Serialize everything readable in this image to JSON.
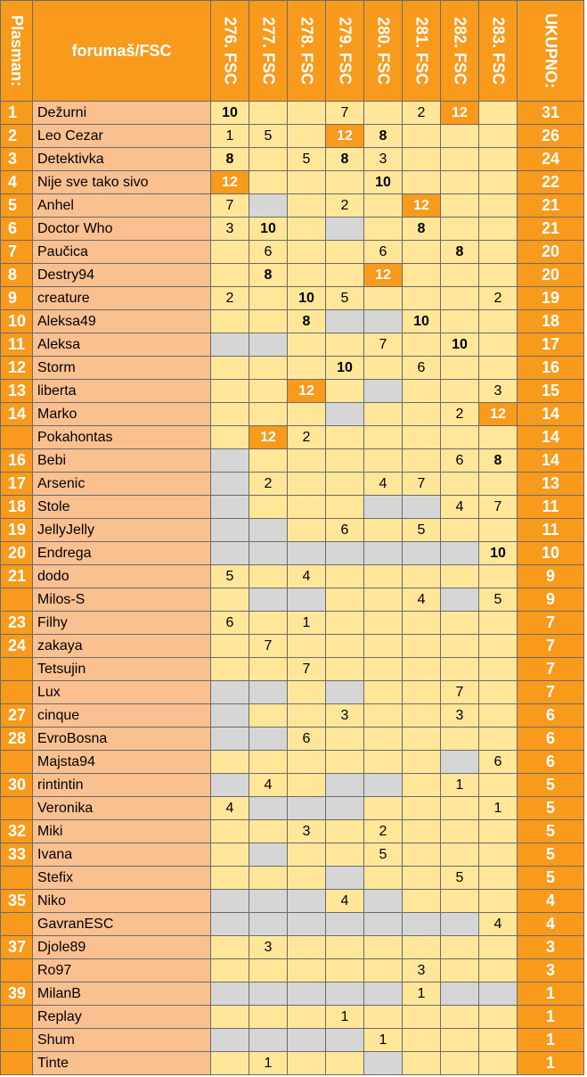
{
  "header": {
    "rank": "Plasman:",
    "name": "forumaš/FSC",
    "columns": [
      "276. FSC",
      "277. FSC",
      "278. FSC",
      "279. FSC",
      "280. FSC",
      "281. FSC",
      "282. FSC",
      "283. FSC"
    ],
    "total": "UKUPNO:"
  },
  "rows": [
    {
      "rank": 1,
      "name": "Dežurni",
      "scores": [
        10,
        null,
        null,
        7,
        null,
        2,
        12,
        null
      ],
      "grey": [],
      "total": 31
    },
    {
      "rank": 2,
      "name": "Leo Cezar",
      "scores": [
        1,
        5,
        null,
        12,
        8,
        null,
        null,
        null
      ],
      "grey": [],
      "total": 26
    },
    {
      "rank": 3,
      "name": "Detektivka",
      "scores": [
        8,
        null,
        5,
        8,
        3,
        null,
        null,
        null
      ],
      "grey": [],
      "total": 24
    },
    {
      "rank": 4,
      "name": "Nije sve tako sivo",
      "scores": [
        12,
        null,
        null,
        null,
        10,
        null,
        null,
        null
      ],
      "grey": [],
      "total": 22
    },
    {
      "rank": 5,
      "name": "Anhel",
      "scores": [
        7,
        null,
        null,
        2,
        null,
        12,
        null,
        null
      ],
      "grey": [
        1
      ],
      "total": 21
    },
    {
      "rank": 6,
      "name": "Doctor Who",
      "scores": [
        3,
        10,
        null,
        null,
        null,
        8,
        null,
        null
      ],
      "grey": [
        3
      ],
      "total": 21
    },
    {
      "rank": 7,
      "name": "Paučica",
      "scores": [
        null,
        6,
        null,
        null,
        6,
        null,
        8,
        null
      ],
      "grey": [],
      "total": 20
    },
    {
      "rank": 8,
      "name": "Destry94",
      "scores": [
        null,
        8,
        null,
        null,
        12,
        null,
        null,
        null
      ],
      "grey": [],
      "total": 20
    },
    {
      "rank": 9,
      "name": "creature",
      "scores": [
        2,
        null,
        10,
        5,
        null,
        null,
        null,
        2
      ],
      "grey": [],
      "total": 19
    },
    {
      "rank": 10,
      "name": "Aleksa49",
      "scores": [
        null,
        null,
        8,
        null,
        null,
        10,
        null,
        null
      ],
      "grey": [
        3,
        4
      ],
      "total": 18
    },
    {
      "rank": 11,
      "name": "Aleksa",
      "scores": [
        null,
        null,
        null,
        null,
        7,
        null,
        10,
        null
      ],
      "grey": [
        0,
        1
      ],
      "total": 17
    },
    {
      "rank": 12,
      "name": "Storm",
      "scores": [
        null,
        null,
        null,
        10,
        null,
        6,
        null,
        null
      ],
      "grey": [],
      "total": 16
    },
    {
      "rank": 13,
      "name": "liberta",
      "scores": [
        null,
        null,
        12,
        null,
        null,
        null,
        null,
        3
      ],
      "grey": [
        4
      ],
      "total": 15
    },
    {
      "rank": 14,
      "name": "Marko",
      "scores": [
        null,
        null,
        null,
        null,
        null,
        null,
        2,
        12
      ],
      "grey": [
        3
      ],
      "total": 14
    },
    {
      "rank": null,
      "name": "Pokahontas",
      "scores": [
        null,
        12,
        2,
        null,
        null,
        null,
        null,
        null
      ],
      "grey": [],
      "total": 14
    },
    {
      "rank": 16,
      "name": "Bebi",
      "scores": [
        null,
        null,
        null,
        null,
        null,
        null,
        6,
        8
      ],
      "grey": [
        0
      ],
      "total": 14
    },
    {
      "rank": 17,
      "name": "Arsenic",
      "scores": [
        null,
        2,
        null,
        null,
        4,
        7,
        null,
        null
      ],
      "grey": [
        0
      ],
      "total": 13
    },
    {
      "rank": 18,
      "name": "Stole",
      "scores": [
        null,
        null,
        null,
        null,
        null,
        null,
        4,
        7
      ],
      "grey": [
        0,
        4,
        5
      ],
      "total": 11
    },
    {
      "rank": 19,
      "name": "JellyJelly",
      "scores": [
        null,
        null,
        null,
        6,
        null,
        5,
        null,
        null
      ],
      "grey": [
        0,
        1
      ],
      "total": 11
    },
    {
      "rank": 20,
      "name": "Endrega",
      "scores": [
        null,
        null,
        null,
        null,
        null,
        null,
        null,
        10
      ],
      "grey": [
        0,
        1,
        2,
        3,
        4,
        5,
        6
      ],
      "total": 10
    },
    {
      "rank": 21,
      "name": "dodo",
      "scores": [
        5,
        null,
        4,
        null,
        null,
        null,
        null,
        null
      ],
      "grey": [],
      "total": 9
    },
    {
      "rank": null,
      "name": "Milos-S",
      "scores": [
        null,
        null,
        null,
        null,
        null,
        4,
        null,
        5
      ],
      "grey": [
        1,
        2,
        6
      ],
      "total": 9
    },
    {
      "rank": 23,
      "name": "Filhy",
      "scores": [
        6,
        null,
        1,
        null,
        null,
        null,
        null,
        null
      ],
      "grey": [],
      "total": 7
    },
    {
      "rank": 24,
      "name": "zakaya",
      "scores": [
        null,
        7,
        null,
        null,
        null,
        null,
        null,
        null
      ],
      "grey": [],
      "total": 7
    },
    {
      "rank": null,
      "name": "Tetsujin",
      "scores": [
        null,
        null,
        7,
        null,
        null,
        null,
        null,
        null
      ],
      "grey": [],
      "total": 7
    },
    {
      "rank": null,
      "name": "Lux",
      "scores": [
        null,
        null,
        null,
        null,
        null,
        null,
        7,
        null
      ],
      "grey": [
        0,
        1,
        3
      ],
      "total": 7
    },
    {
      "rank": 27,
      "name": "cinque",
      "scores": [
        null,
        null,
        null,
        3,
        null,
        null,
        3,
        null
      ],
      "grey": [
        0
      ],
      "total": 6
    },
    {
      "rank": 28,
      "name": "EvroBosna",
      "scores": [
        null,
        null,
        6,
        null,
        null,
        null,
        null,
        null
      ],
      "grey": [
        0,
        1
      ],
      "total": 6
    },
    {
      "rank": null,
      "name": "Majsta94",
      "scores": [
        null,
        null,
        null,
        null,
        null,
        null,
        null,
        6
      ],
      "grey": [
        6
      ],
      "total": 6
    },
    {
      "rank": 30,
      "name": "rintintin",
      "scores": [
        null,
        4,
        null,
        null,
        null,
        null,
        1,
        null
      ],
      "grey": [
        0,
        3,
        4
      ],
      "total": 5
    },
    {
      "rank": null,
      "name": "Veronika",
      "scores": [
        4,
        null,
        null,
        null,
        null,
        null,
        null,
        1
      ],
      "grey": [
        1,
        2,
        3
      ],
      "total": 5
    },
    {
      "rank": 32,
      "name": "Miki",
      "scores": [
        null,
        null,
        3,
        null,
        2,
        null,
        null,
        null
      ],
      "grey": [],
      "total": 5
    },
    {
      "rank": 33,
      "name": "Ivana",
      "scores": [
        null,
        null,
        null,
        null,
        5,
        null,
        null,
        null
      ],
      "grey": [
        1
      ],
      "total": 5
    },
    {
      "rank": null,
      "name": "Stefix",
      "scores": [
        null,
        null,
        null,
        null,
        null,
        null,
        5,
        null
      ],
      "grey": [
        3
      ],
      "total": 5
    },
    {
      "rank": 35,
      "name": "Niko",
      "scores": [
        null,
        null,
        null,
        4,
        null,
        null,
        null,
        null
      ],
      "grey": [
        0,
        1,
        2,
        4
      ],
      "total": 4
    },
    {
      "rank": null,
      "name": "GavranESC",
      "scores": [
        null,
        null,
        null,
        null,
        null,
        null,
        null,
        4
      ],
      "grey": [
        0,
        1,
        2,
        3,
        4,
        5,
        6
      ],
      "total": 4
    },
    {
      "rank": 37,
      "name": "Djole89",
      "scores": [
        null,
        3,
        null,
        null,
        null,
        null,
        null,
        null
      ],
      "grey": [],
      "total": 3
    },
    {
      "rank": null,
      "name": "Ro97",
      "scores": [
        null,
        null,
        null,
        null,
        null,
        3,
        null,
        null
      ],
      "grey": [],
      "total": 3
    },
    {
      "rank": 39,
      "name": "MilanB",
      "scores": [
        null,
        null,
        null,
        null,
        null,
        1,
        null,
        null
      ],
      "grey": [
        0,
        1,
        2,
        3,
        4,
        6,
        7
      ],
      "total": 1
    },
    {
      "rank": null,
      "name": "Replay",
      "scores": [
        null,
        null,
        null,
        1,
        null,
        null,
        null,
        null
      ],
      "grey": [],
      "total": 1
    },
    {
      "rank": null,
      "name": "Shum",
      "scores": [
        null,
        null,
        null,
        null,
        1,
        null,
        null,
        null
      ],
      "grey": [
        0,
        1,
        2,
        3
      ],
      "total": 1
    },
    {
      "rank": null,
      "name": "Tinte",
      "scores": [
        null,
        1,
        null,
        null,
        null,
        null,
        null,
        null
      ],
      "grey": [
        4
      ],
      "total": 1
    }
  ]
}
